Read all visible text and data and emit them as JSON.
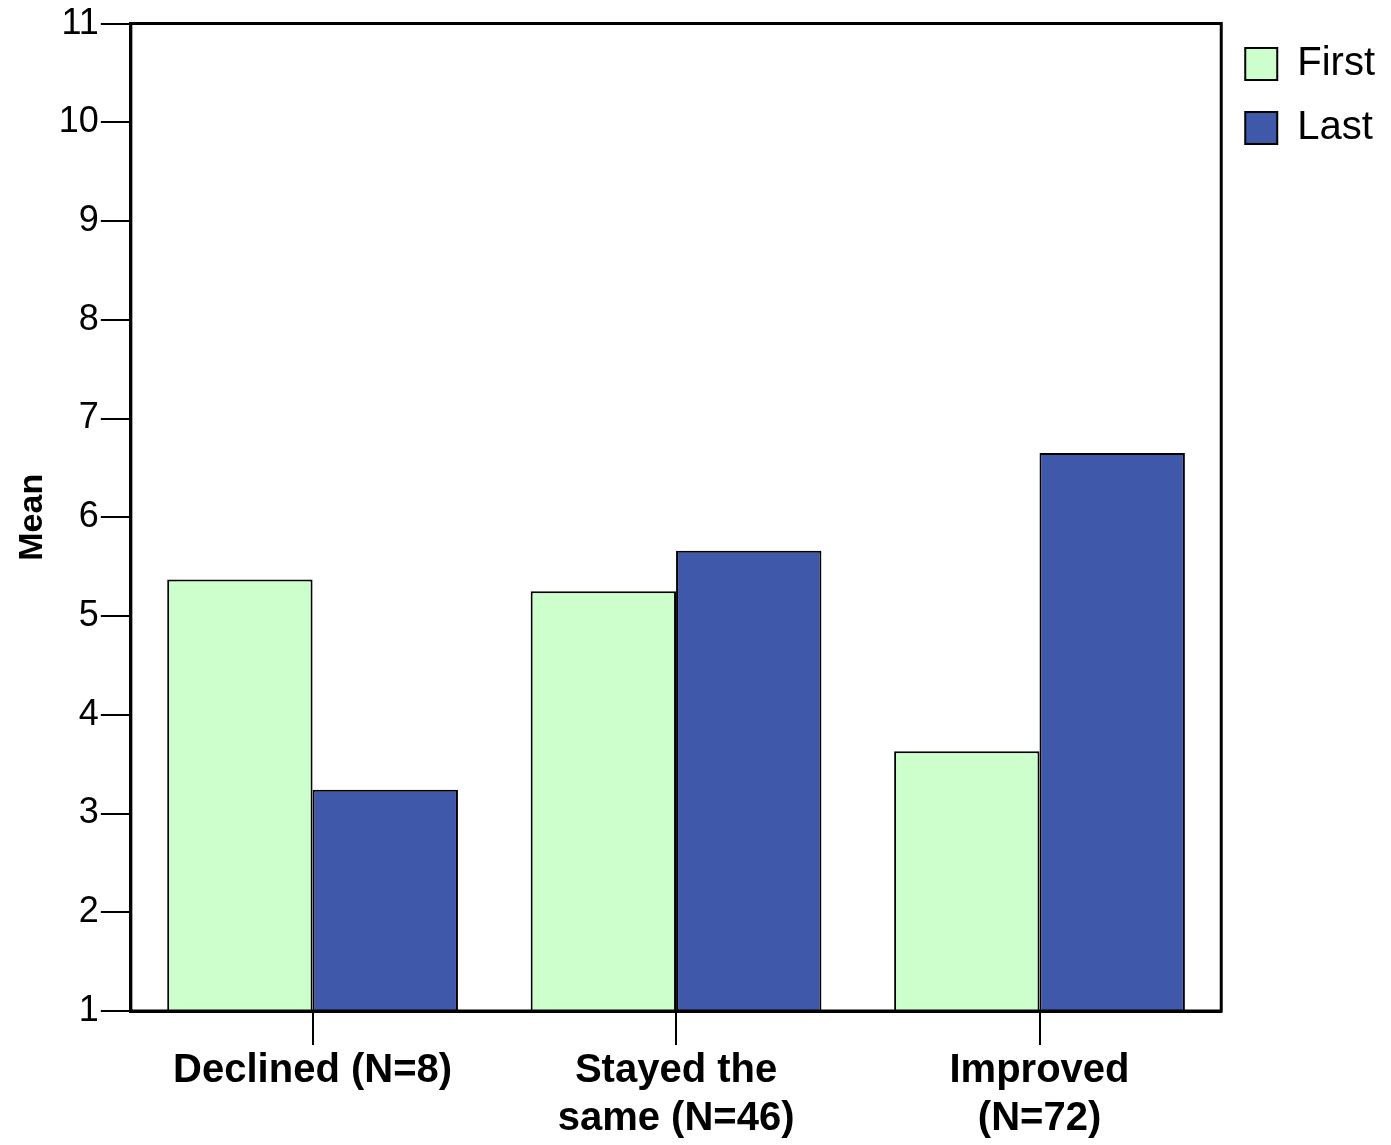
{
  "chart_data": {
    "type": "bar",
    "ylabel": "Mean",
    "categories": [
      "Declined (N=8)",
      "Stayed the same (N=46)",
      "Improved (N=72)"
    ],
    "series": [
      {
        "name": "First",
        "color": "#ccffcc",
        "values": [
          5.37,
          5.25,
          3.63
        ]
      },
      {
        "name": "Last",
        "color": "#3f58aa",
        "values": [
          3.24,
          5.66,
          6.65
        ]
      }
    ],
    "ylim": [
      1,
      11
    ],
    "yticks": [
      1,
      2,
      3,
      4,
      5,
      6,
      7,
      8,
      9,
      10,
      11
    ],
    "grid": false,
    "legend": "top right"
  }
}
